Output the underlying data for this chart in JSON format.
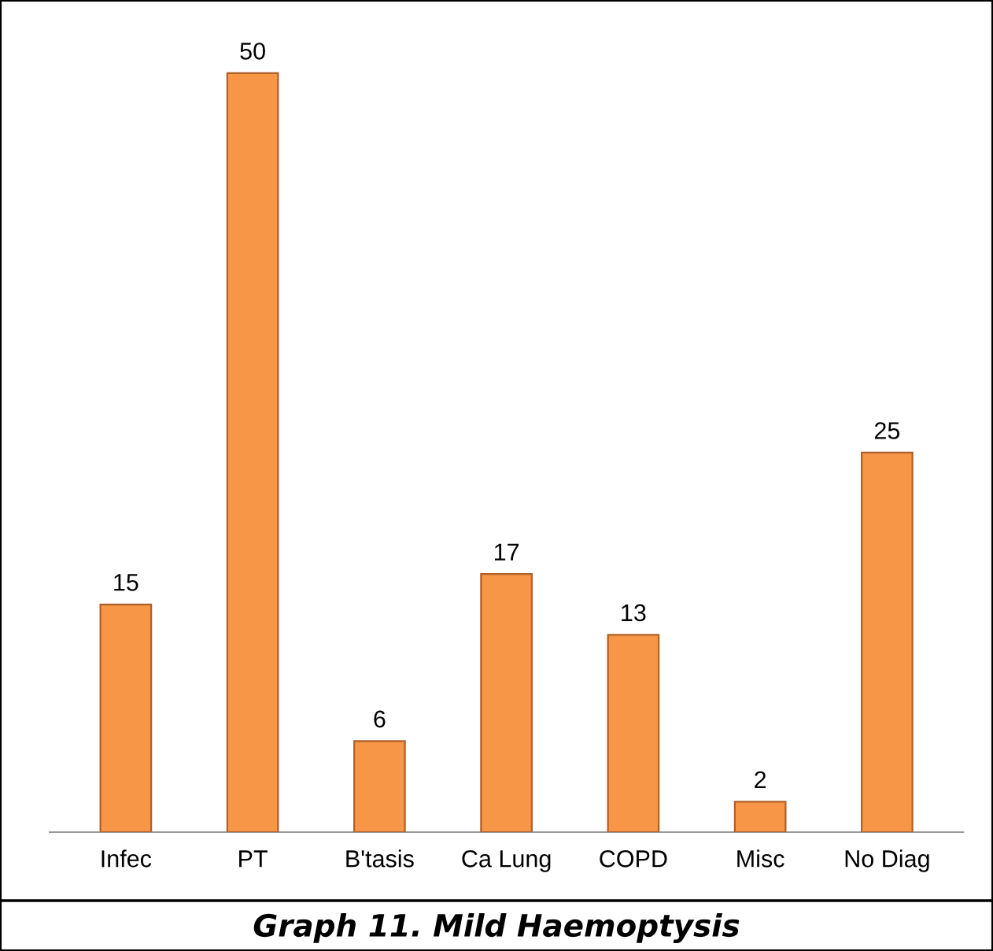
{
  "chart_data": {
    "type": "bar",
    "title": "Graph 11. Mild Haemoptysis",
    "categories": [
      "Infec",
      "PT",
      "B'tasis",
      "Ca Lung",
      "COPD",
      "Misc",
      "No Diag"
    ],
    "values": [
      15,
      50,
      6,
      17,
      13,
      2,
      25
    ],
    "color": "#f79646",
    "data_labels": true
  }
}
